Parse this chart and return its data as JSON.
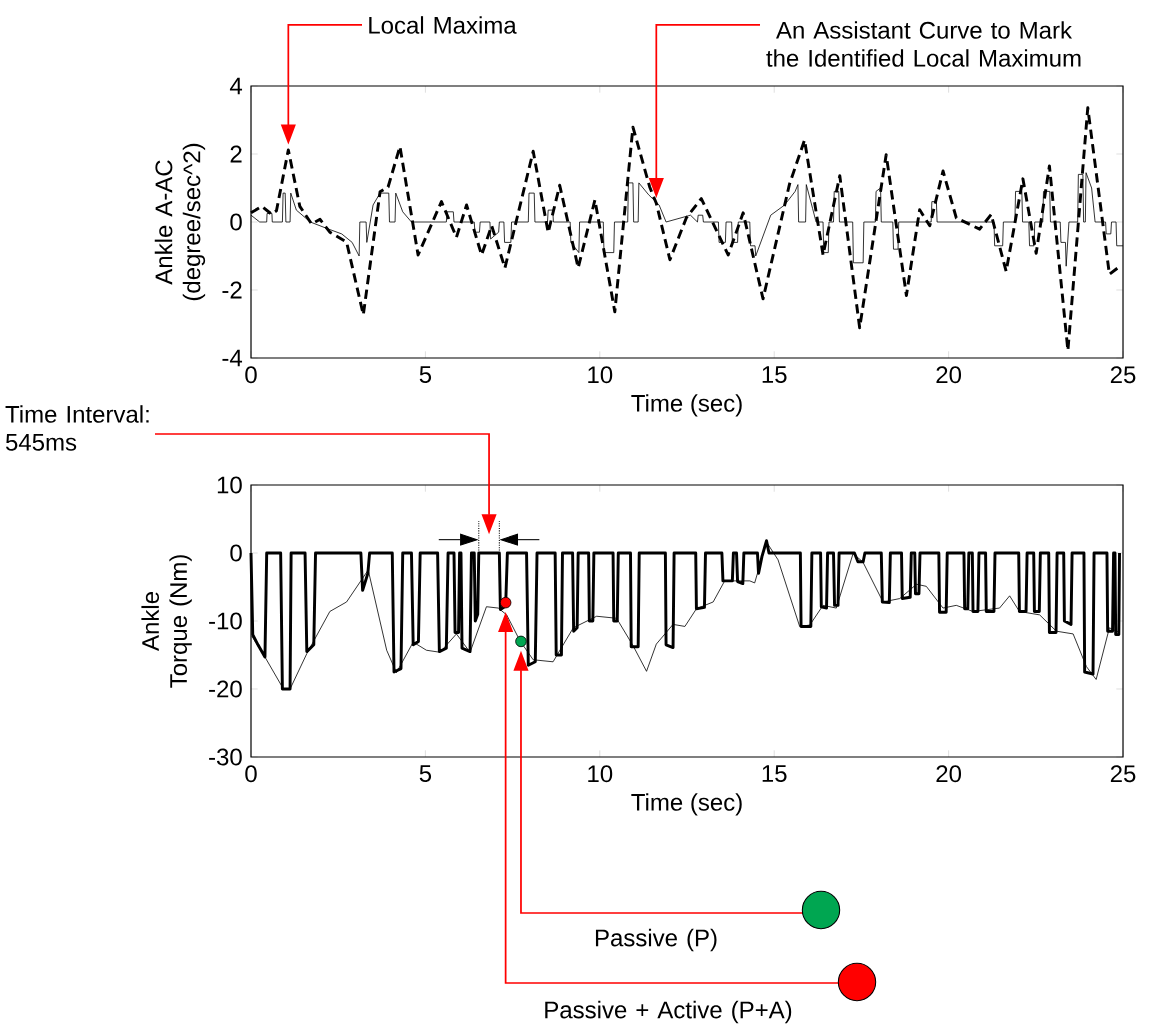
{
  "chart_data": [
    {
      "type": "line",
      "xlabel": "Time (sec)",
      "ylabel": "Ankle A-AC (degree/sec^2)",
      "xlim": [
        0,
        25
      ],
      "ylim": [
        -4,
        4
      ],
      "xticks": [
        0,
        5,
        10,
        15,
        20,
        25
      ],
      "yticks": [
        -4,
        -2,
        0,
        2,
        4
      ],
      "annotations": [
        "Local Maxima",
        "An Assistant Curve to Mark the Identified Local Maximum"
      ],
      "series": [
        {
          "color": "#000000",
          "line_style": "dashed",
          "x": [
            0.0,
            0.31,
            0.59,
            0.73,
            1.07,
            1.4,
            1.74,
            1.98,
            2.26,
            2.74,
            3.22,
            3.7,
            3.93,
            4.27,
            4.79,
            5.46,
            5.89,
            6.18,
            6.61,
            6.9,
            7.28,
            8.09,
            8.52,
            8.85,
            9.38,
            9.86,
            10.43,
            10.95,
            11.43,
            11.62,
            12.01,
            12.48,
            12.91,
            13.68,
            14.11,
            14.68,
            15.44,
            15.87,
            16.4,
            16.88,
            17.45,
            18.21,
            18.79,
            19.17,
            19.46,
            19.84,
            20.22,
            20.89,
            21.22,
            21.65,
            22.13,
            22.51,
            22.89,
            23.42,
            23.99,
            24.61,
            24.85
          ],
          "values": [
            0.27,
            0.46,
            0.23,
            0.33,
            2.12,
            0.46,
            -0.06,
            0.08,
            -0.3,
            -0.59,
            -2.73,
            0.89,
            1.03,
            2.22,
            -0.97,
            0.6,
            -0.45,
            0.5,
            -0.97,
            -0.11,
            -1.35,
            2.08,
            -0.31,
            1.08,
            -1.35,
            0.65,
            -2.64,
            2.79,
            1.03,
            0.55,
            -1.11,
            0.12,
            0.69,
            -0.97,
            0.27,
            -2.26,
            1.12,
            2.41,
            -0.97,
            1.36,
            -3.11,
            1.98,
            -2.16,
            0.36,
            -0.11,
            1.5,
            0.12,
            -0.21,
            0.22,
            -1.45,
            1.27,
            -0.92,
            1.65,
            -3.78,
            3.36,
            -1.54,
            -1.35
          ]
        },
        {
          "color": "#000000",
          "line_style": "solid",
          "x": [
            0,
            0.25,
            0.45,
            0.46,
            0.6,
            0.61,
            0.9,
            0.92,
            0.98,
            1.0,
            1.12,
            1.14,
            1.3,
            1.7,
            2.2,
            2.6,
            2.9,
            3.1,
            3.12,
            3.3,
            3.32,
            3.5,
            3.7,
            3.95,
            3.97,
            4.13,
            4.15,
            4.35,
            4.6,
            5.6,
            5.62,
            5.8,
            5.82,
            6.4,
            6.42,
            6.55,
            6.57,
            6.85,
            6.87,
            7.1,
            7.12,
            7.25,
            7.27,
            7.45,
            7.47,
            7.95,
            7.97,
            8.12,
            8.14,
            8.5,
            8.52,
            8.65,
            8.67,
            9.15,
            9.17,
            9.4,
            9.42,
            10.1,
            10.12,
            10.4,
            10.42,
            10.8,
            10.82,
            10.95,
            10.97,
            11.1,
            11.12,
            11.4,
            11.7,
            11.9,
            12.6,
            12.8,
            12.82,
            12.95,
            12.97,
            13.4,
            13.42,
            13.6,
            13.62,
            13.78,
            13.8,
            13.95,
            13.97,
            14.3,
            14.32,
            14.45,
            14.47,
            14.9,
            15.3,
            15.6,
            15.68,
            15.7,
            15.9,
            15.92,
            16.1,
            16.2,
            16.4,
            16.42,
            16.55,
            16.57,
            16.7,
            16.72,
            16.85,
            16.87,
            17.25,
            17.27,
            17.55,
            17.57,
            17.9,
            17.92,
            18.05,
            18.07,
            18.4,
            18.42,
            18.55,
            18.57,
            19.5,
            19.52,
            19.65,
            19.67,
            21.3,
            21.32,
            21.55,
            21.57,
            21.9,
            21.92,
            22.1,
            22.12,
            22.3,
            22.32,
            22.45,
            22.47,
            22.7,
            22.72,
            22.9,
            22.92,
            23.2,
            23.22,
            23.35,
            23.37,
            23.45,
            23.7,
            23.72,
            23.85,
            23.87,
            23.92,
            23.94,
            24.1,
            24.2,
            24.5,
            24.52,
            24.65,
            24.67,
            24.8,
            24.82,
            25
          ],
          "values": [
            0.2,
            0,
            0,
            0.25,
            0.25,
            0,
            0,
            0.85,
            0.85,
            0,
            0,
            0.85,
            0.35,
            0,
            -0.2,
            -0.35,
            -0.6,
            -1.0,
            0,
            0,
            -0.6,
            0.5,
            0.85,
            0.85,
            0,
            0,
            0.85,
            0.3,
            0,
            0,
            0.3,
            0.3,
            0,
            0,
            -0.3,
            -0.3,
            0,
            0,
            -0.5,
            -0.3,
            0,
            0,
            -0.6,
            -0.6,
            0,
            0,
            0.85,
            0.85,
            0,
            0,
            0.35,
            0.35,
            0,
            0,
            -0.6,
            -0.9,
            0,
            0,
            -0.9,
            -0.9,
            0,
            0,
            1.15,
            1.15,
            0,
            0,
            1.15,
            0.8,
            0.5,
            0,
            0.2,
            0,
            0.2,
            0.2,
            0,
            0,
            -0.6,
            -0.6,
            0,
            0,
            -0.6,
            -0.6,
            0,
            0,
            -0.7,
            -0.7,
            -1.0,
            0.2,
            0.5,
            0.9,
            1.1,
            0,
            0,
            1.1,
            0.4,
            0,
            0,
            -0.9,
            -0.9,
            0,
            0,
            0.9,
            0.9,
            0,
            0,
            -1.2,
            -1.2,
            0,
            0,
            0.9,
            1.0,
            0,
            0,
            -0.8,
            -0.8,
            0,
            0,
            0.6,
            0.6,
            0,
            0,
            -0.7,
            -0.7,
            0,
            0,
            0.9,
            0.9,
            0,
            0,
            -0.7,
            -0.7,
            0,
            0,
            0.9,
            0.9,
            0,
            0,
            -0.6,
            -0.6,
            -1.3,
            0,
            0,
            1.4,
            1.4,
            0,
            0,
            1.45,
            1.0,
            0,
            0,
            -0.35,
            -0.35,
            0,
            0,
            -0.7,
            -0.7
          ]
        }
      ]
    },
    {
      "type": "line",
      "xlabel": "Time (sec)",
      "ylabel": "Ankle Torque (Nm)",
      "xlim": [
        0,
        25
      ],
      "ylim": [
        -30,
        10
      ],
      "xticks": [
        0,
        5,
        10,
        15,
        20,
        25
      ],
      "yticks": [
        -30,
        -20,
        -10,
        0,
        10
      ],
      "annotations": [
        "Time Interval: 545ms",
        "Passive (P)",
        "Passive + Active (P+A)"
      ],
      "series": [
        {
          "color": "#000000",
          "line_style": "solid",
          "x": [
            0,
            0.05,
            0.2,
            0.4,
            0.45,
            0.85,
            0.9,
            1.12,
            1.15,
            1.55,
            1.6,
            1.8,
            1.85,
            3.15,
            3.2,
            3.35,
            3.4,
            4.05,
            4.1,
            4.3,
            4.35,
            4.6,
            4.65,
            4.8,
            4.85,
            5.35,
            5.4,
            5.6,
            5.65,
            5.82,
            5.85,
            5.95,
            5.98,
            6.02,
            6.05,
            6.28,
            6.32,
            6.4,
            6.43,
            6.5,
            6.53,
            7.12,
            7.15,
            7.3,
            7.35,
            7.9,
            7.95,
            8.15,
            8.2,
            8.72,
            8.75,
            8.9,
            8.93,
            9.22,
            9.25,
            9.35,
            9.38,
            9.68,
            9.7,
            9.8,
            9.83,
            10.38,
            10.4,
            10.5,
            10.53,
            10.88,
            10.9,
            11.1,
            11.13,
            11.88,
            11.9,
            12.1,
            12.13,
            12.75,
            12.77,
            13.0,
            13.03,
            13.5,
            13.53,
            13.8,
            13.83,
            13.92,
            13.95,
            14.1,
            14.13,
            14.52,
            14.55,
            14.65,
            14.78,
            14.85,
            15.75,
            15.77,
            16.05,
            16.08,
            16.33,
            16.35,
            16.5,
            16.53,
            16.7,
            16.73,
            16.83,
            16.86,
            17.3,
            17.4,
            17.55,
            17.6,
            18.07,
            18.1,
            18.3,
            18.33,
            18.65,
            18.67,
            18.9,
            18.93,
            19.03,
            19.05,
            19.15,
            19.18,
            19.72,
            19.74,
            19.93,
            19.96,
            20.44,
            20.46,
            20.55,
            20.58,
            20.68,
            20.7,
            20.84,
            20.87,
            21.06,
            21.08,
            21.3,
            21.33,
            22.01,
            22.03,
            22.22,
            22.25,
            22.44,
            22.46,
            22.6,
            22.63,
            22.87,
            22.89,
            23.08,
            23.11,
            23.3,
            23.32,
            23.51,
            23.54,
            23.88,
            23.9,
            24.14,
            24.17,
            24.54,
            24.56,
            24.7,
            24.73,
            24.77,
            24.79,
            24.88,
            24.9
          ],
          "values": [
            0,
            -12,
            -13.5,
            -15.3,
            0,
            0,
            -20,
            -20,
            0,
            0,
            -14.5,
            -13.5,
            0,
            0,
            -5.5,
            -3,
            0,
            0,
            -17.5,
            -17,
            0,
            0,
            -13.5,
            -13,
            0,
            0,
            -14.5,
            -14,
            0,
            0,
            -11.7,
            -11.7,
            0,
            0,
            -14,
            -14.5,
            0,
            0,
            -10,
            -9,
            0,
            0,
            -8.3,
            -7.8,
            0,
            0,
            -16.5,
            -16,
            0,
            0,
            -15,
            -15,
            0,
            0,
            -11.5,
            -11,
            0,
            0,
            -10,
            -10,
            0,
            0,
            -10,
            -10,
            0,
            0,
            -13.8,
            -13.8,
            0,
            0,
            -13.5,
            -13.9,
            0,
            0,
            -8.2,
            -8.0,
            0,
            0,
            -4.1,
            -4.1,
            0,
            0,
            -4.2,
            -4.5,
            0,
            0,
            -3,
            -0.5,
            1.8,
            0,
            0,
            -10.8,
            -10.8,
            0,
            0,
            -7.9,
            -8.1,
            0,
            0,
            -7.7,
            -7.7,
            0,
            0,
            -1.3,
            -1.3,
            0,
            0,
            -7.2,
            -7.3,
            0,
            0,
            -6.7,
            -6.5,
            0,
            0,
            -6,
            -6,
            0,
            0,
            -8.7,
            -8.7,
            0,
            0,
            -8.2,
            -8.2,
            0,
            0,
            -8.6,
            -8.6,
            0,
            0,
            -8.6,
            -8.6,
            0,
            0,
            -8.6,
            -8.6,
            0,
            0,
            -8.6,
            -8.6,
            0,
            0,
            -11.7,
            -11.7,
            0,
            0,
            -10,
            -10.5,
            0,
            0,
            -17.5,
            -17.8,
            0,
            0,
            -11.5,
            -11.5,
            0,
            0,
            -12,
            -12,
            0
          ]
        },
        {
          "color": "#000000",
          "line_style": "solid",
          "x": [
            0.02,
            0.4,
            0.93,
            1.12,
            1.6,
            2.26,
            2.74,
            3.36,
            3.89,
            4.17,
            4.65,
            5.03,
            5.42,
            5.89,
            6.28,
            6.75,
            7.09,
            7.33,
            7.71,
            8.09,
            8.66,
            9.24,
            9.91,
            10.48,
            10.95,
            11.34,
            11.62,
            12.1,
            12.44,
            12.77,
            13.25,
            13.58,
            14.3,
            14.44,
            14.78,
            15.11,
            15.73,
            16.02,
            16.4,
            16.78,
            17.26,
            17.54,
            18.12,
            18.6,
            19.08,
            19.36,
            19.84,
            20.22,
            20.7,
            21.46,
            21.75,
            22.03,
            22.61,
            23.09,
            23.57,
            23.95,
            24.23,
            24.61,
            24.9
          ],
          "values": [
            -12.2,
            -15.3,
            -20.0,
            -20.0,
            -14.8,
            -8.6,
            -7.2,
            -2.5,
            -14.3,
            -17.6,
            -13.1,
            -14.3,
            -14.6,
            -11.9,
            -14.6,
            -7.9,
            -8.1,
            -9.1,
            -12.9,
            -15.7,
            -16.0,
            -11.0,
            -9.3,
            -9.6,
            -13.6,
            -17.4,
            -13.4,
            -10.5,
            -10.8,
            -8.2,
            -7.2,
            -4.1,
            -4.1,
            -4.4,
            1.6,
            -1.0,
            -10.8,
            -10.6,
            -7.7,
            -8.1,
            -0.1,
            -1.3,
            -7.2,
            -6.7,
            -4.6,
            -4.9,
            -8.1,
            -7.7,
            -8.6,
            -8.1,
            -6.3,
            -8.6,
            -9.1,
            -11.5,
            -11.9,
            -16.7,
            -18.6,
            -11.0,
            -11.7
          ]
        },
        {
          "type": "scatter",
          "color": "#00a651",
          "marker": "circle",
          "x": [
            7.74
          ],
          "values": [
            -13.0
          ]
        },
        {
          "type": "scatter",
          "color": "#ff0000",
          "marker": "circle",
          "x": [
            7.3
          ],
          "values": [
            -7.3
          ]
        }
      ]
    }
  ]
}
